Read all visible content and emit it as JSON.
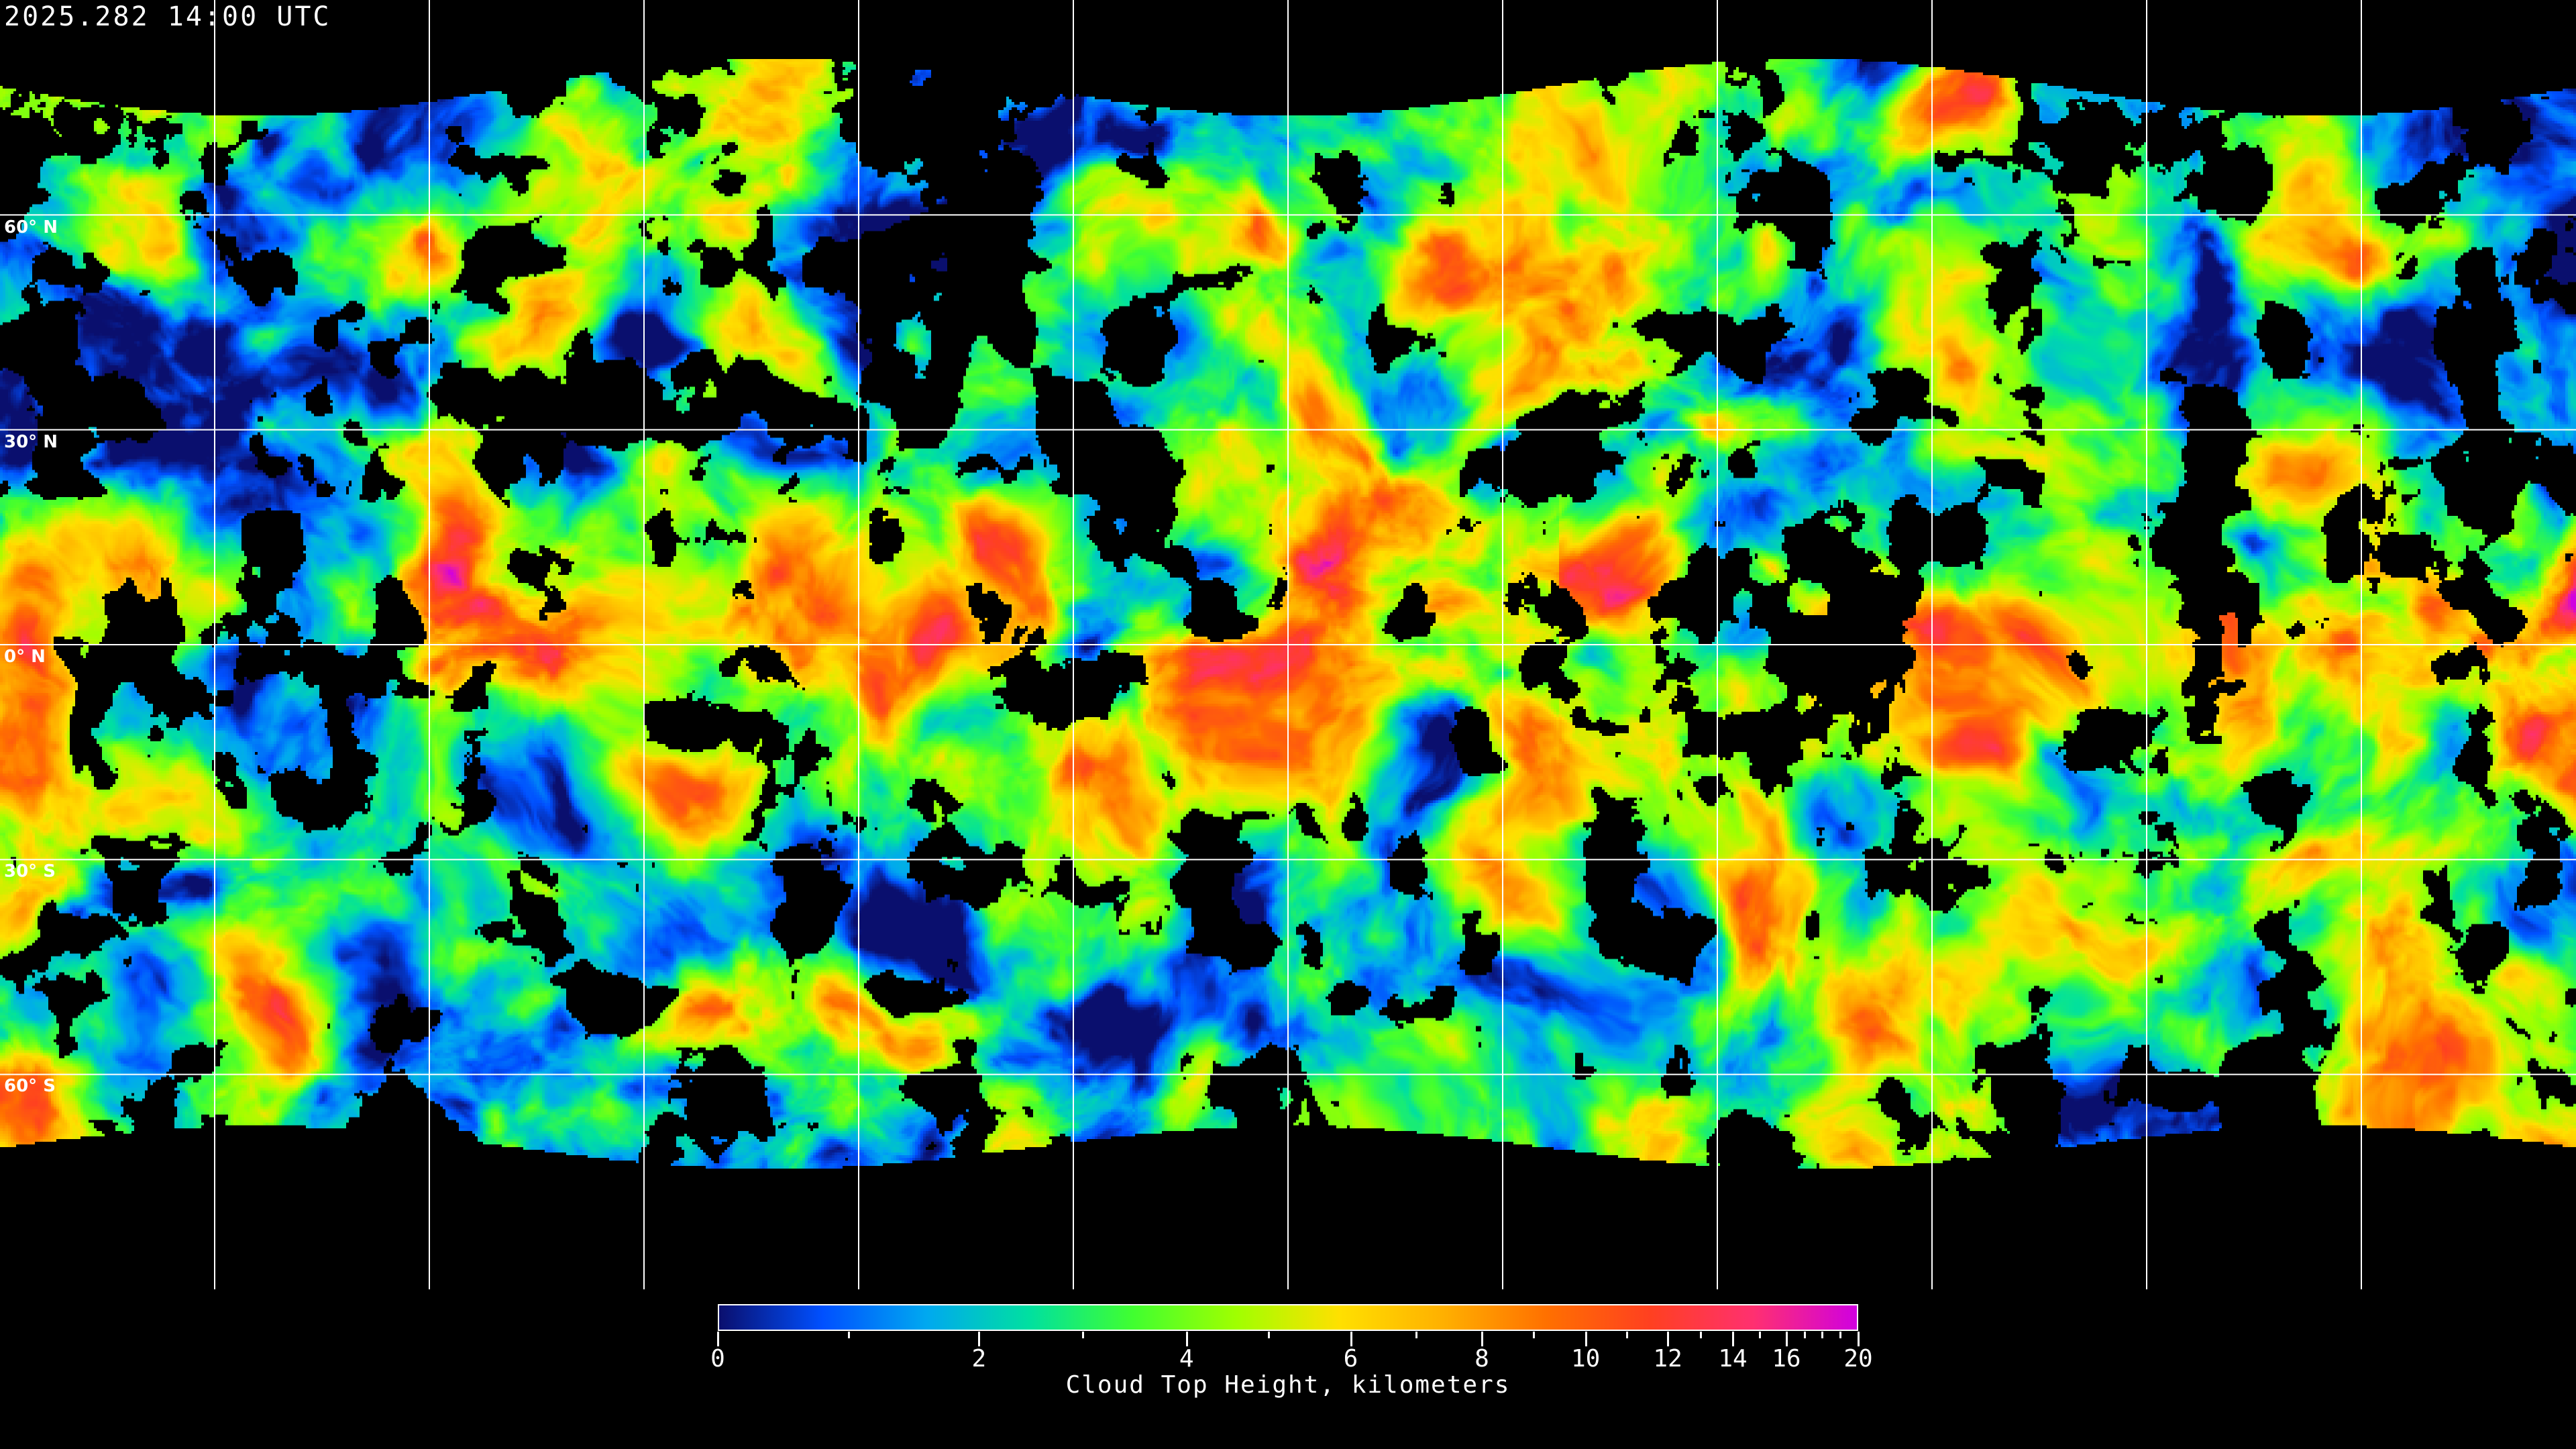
{
  "title": "2025.282 14:00 UTC",
  "map": {
    "projection": "equirectangular",
    "grid_spacing_degrees": 30,
    "latitude_labels": [
      "60° N",
      "30° N",
      "0° N",
      "30° S",
      "60° S"
    ]
  },
  "colorbar": {
    "label": "Cloud Top Height, kilometers",
    "range": [
      0,
      20
    ],
    "tick_labels": [
      "0",
      "2",
      "4",
      "6",
      "8",
      "10",
      "12",
      "14",
      "16",
      "20"
    ],
    "tick_values": [
      0,
      2,
      4,
      6,
      8,
      10,
      12,
      14,
      16,
      20
    ],
    "minor_tick_values": [
      1,
      3,
      5,
      7,
      9,
      11,
      13,
      15,
      17,
      18,
      19
    ],
    "colors": [
      "#0a0f6e",
      "#0050ff",
      "#00a8f0",
      "#00e0a0",
      "#40ff30",
      "#a0ff00",
      "#ffe000",
      "#ffb000",
      "#ff7000",
      "#ff4020",
      "#ff3070",
      "#d000e0"
    ],
    "no_data_color": "#000000"
  }
}
